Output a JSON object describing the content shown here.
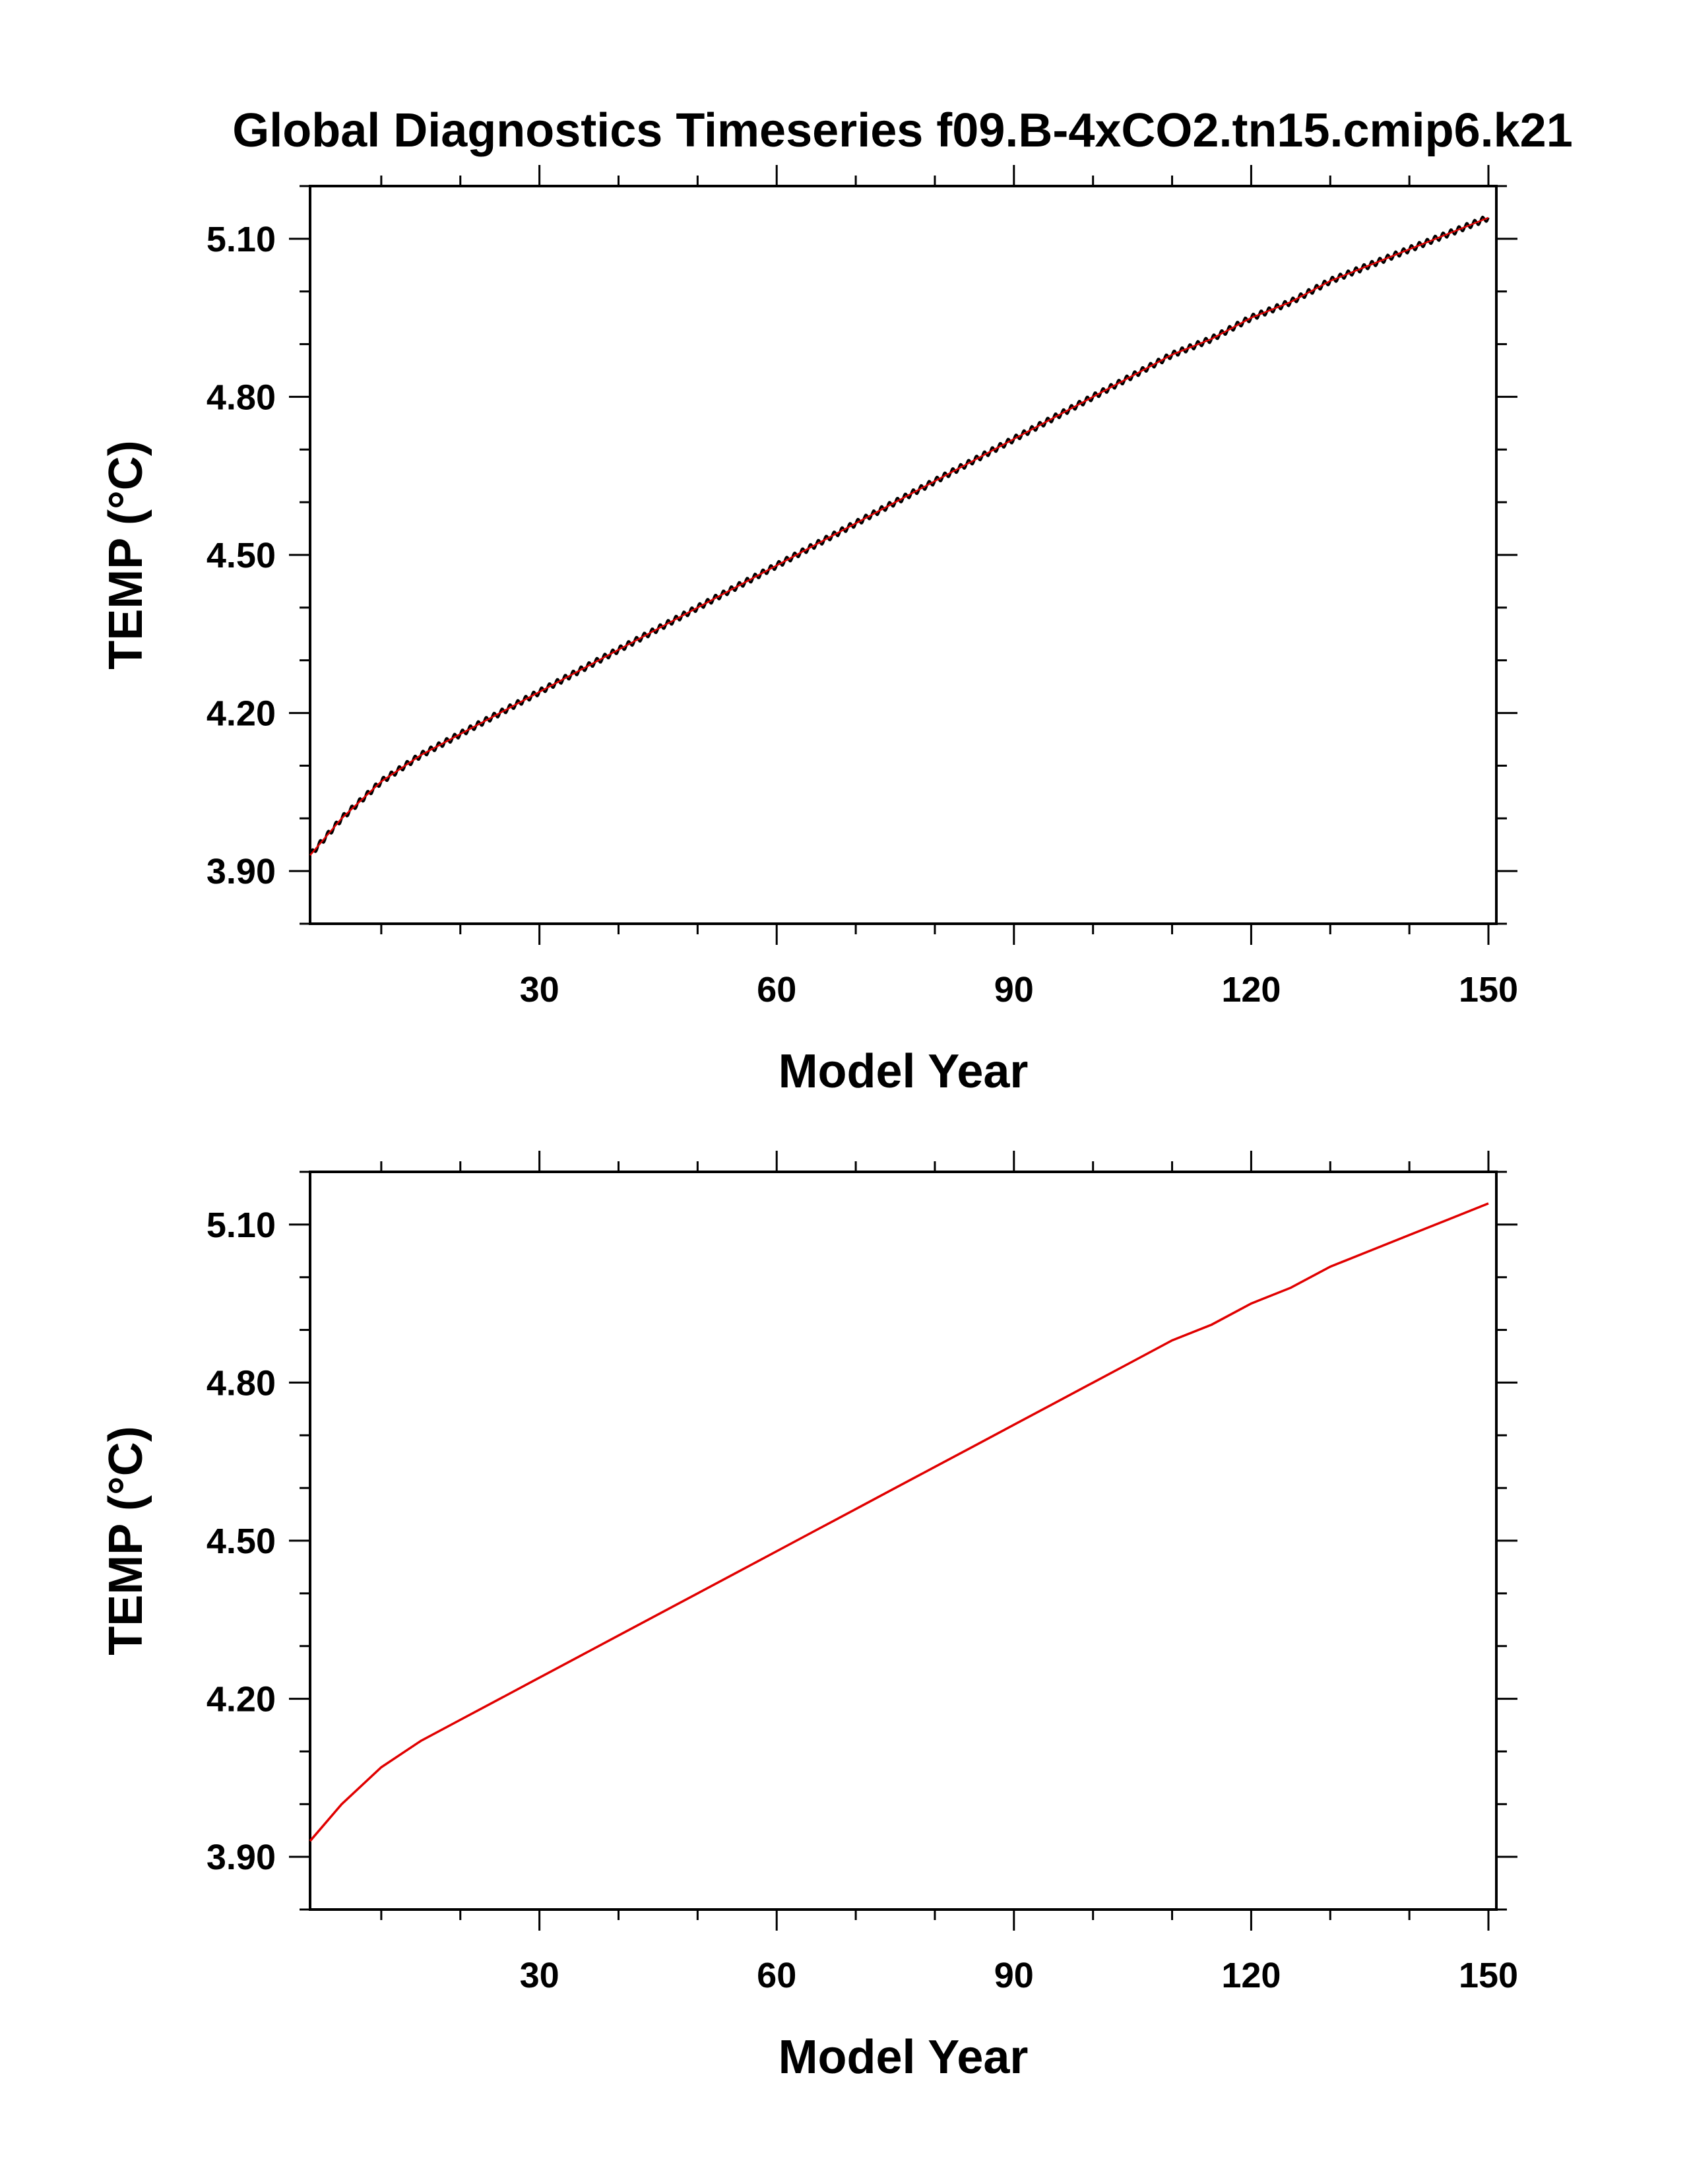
{
  "title": "Global Diagnostics Timeseries f09.B-4xCO2.tn15.cmip6.k21",
  "colors": {
    "axis": "#000000",
    "series_black": "#000000",
    "series_red": "#e00000",
    "background": "#ffffff"
  },
  "chart_data": [
    {
      "type": "line",
      "xlabel": "Model Year",
      "ylabel": "TEMP (°C)",
      "xlim": [
        1,
        151
      ],
      "ylim": [
        3.8,
        5.2
      ],
      "xticks": [
        30,
        60,
        90,
        120,
        150
      ],
      "xtick_labels": [
        "30",
        "60",
        "90",
        "120",
        "150"
      ],
      "yticks": [
        3.9,
        4.2,
        4.5,
        4.8,
        5.1
      ],
      "ytick_labels": [
        "3.90",
        "4.20",
        "4.50",
        "4.80",
        "5.10"
      ],
      "grid": false,
      "legend": "none",
      "series": [
        {
          "color": "#000000",
          "style": "monthly",
          "x": [
            1,
            5,
            10,
            15,
            20,
            25,
            30,
            35,
            40,
            45,
            50,
            55,
            60,
            65,
            70,
            75,
            80,
            85,
            90,
            95,
            100,
            105,
            110,
            115,
            120,
            125,
            130,
            135,
            140,
            145,
            150
          ],
          "y": [
            3.93,
            4.0,
            4.07,
            4.12,
            4.16,
            4.2,
            4.24,
            4.28,
            4.32,
            4.36,
            4.4,
            4.44,
            4.48,
            4.52,
            4.56,
            4.6,
            4.64,
            4.68,
            4.72,
            4.76,
            4.8,
            4.84,
            4.88,
            4.91,
            4.95,
            4.98,
            5.02,
            5.05,
            5.08,
            5.11,
            5.14
          ],
          "seasonal_amplitude": 0.006
        },
        {
          "color": "#e00000",
          "style": "annual",
          "x": [
            1,
            5,
            10,
            15,
            20,
            25,
            30,
            35,
            40,
            45,
            50,
            55,
            60,
            65,
            70,
            75,
            80,
            85,
            90,
            95,
            100,
            105,
            110,
            115,
            120,
            125,
            130,
            135,
            140,
            145,
            150
          ],
          "y": [
            3.93,
            4.0,
            4.07,
            4.12,
            4.16,
            4.2,
            4.24,
            4.28,
            4.32,
            4.36,
            4.4,
            4.44,
            4.48,
            4.52,
            4.56,
            4.6,
            4.64,
            4.68,
            4.72,
            4.76,
            4.8,
            4.84,
            4.88,
            4.91,
            4.95,
            4.98,
            5.02,
            5.05,
            5.08,
            5.11,
            5.14
          ]
        }
      ]
    },
    {
      "type": "line",
      "xlabel": "Model Year",
      "ylabel": "TEMP (°C)",
      "xlim": [
        1,
        151
      ],
      "ylim": [
        3.8,
        5.2
      ],
      "xticks": [
        30,
        60,
        90,
        120,
        150
      ],
      "xtick_labels": [
        "30",
        "60",
        "90",
        "120",
        "150"
      ],
      "yticks": [
        3.9,
        4.2,
        4.5,
        4.8,
        5.1
      ],
      "ytick_labels": [
        "3.90",
        "4.20",
        "4.50",
        "4.80",
        "5.10"
      ],
      "grid": false,
      "legend": "none",
      "series": [
        {
          "color": "#e00000",
          "style": "annual",
          "x": [
            1,
            5,
            10,
            15,
            20,
            25,
            30,
            35,
            40,
            45,
            50,
            55,
            60,
            65,
            70,
            75,
            80,
            85,
            90,
            95,
            100,
            105,
            110,
            115,
            120,
            125,
            130,
            135,
            140,
            145,
            150
          ],
          "y": [
            3.93,
            4.0,
            4.07,
            4.12,
            4.16,
            4.2,
            4.24,
            4.28,
            4.32,
            4.36,
            4.4,
            4.44,
            4.48,
            4.52,
            4.56,
            4.6,
            4.64,
            4.68,
            4.72,
            4.76,
            4.8,
            4.84,
            4.88,
            4.91,
            4.95,
            4.98,
            5.02,
            5.05,
            5.08,
            5.11,
            5.14
          ]
        }
      ]
    }
  ]
}
